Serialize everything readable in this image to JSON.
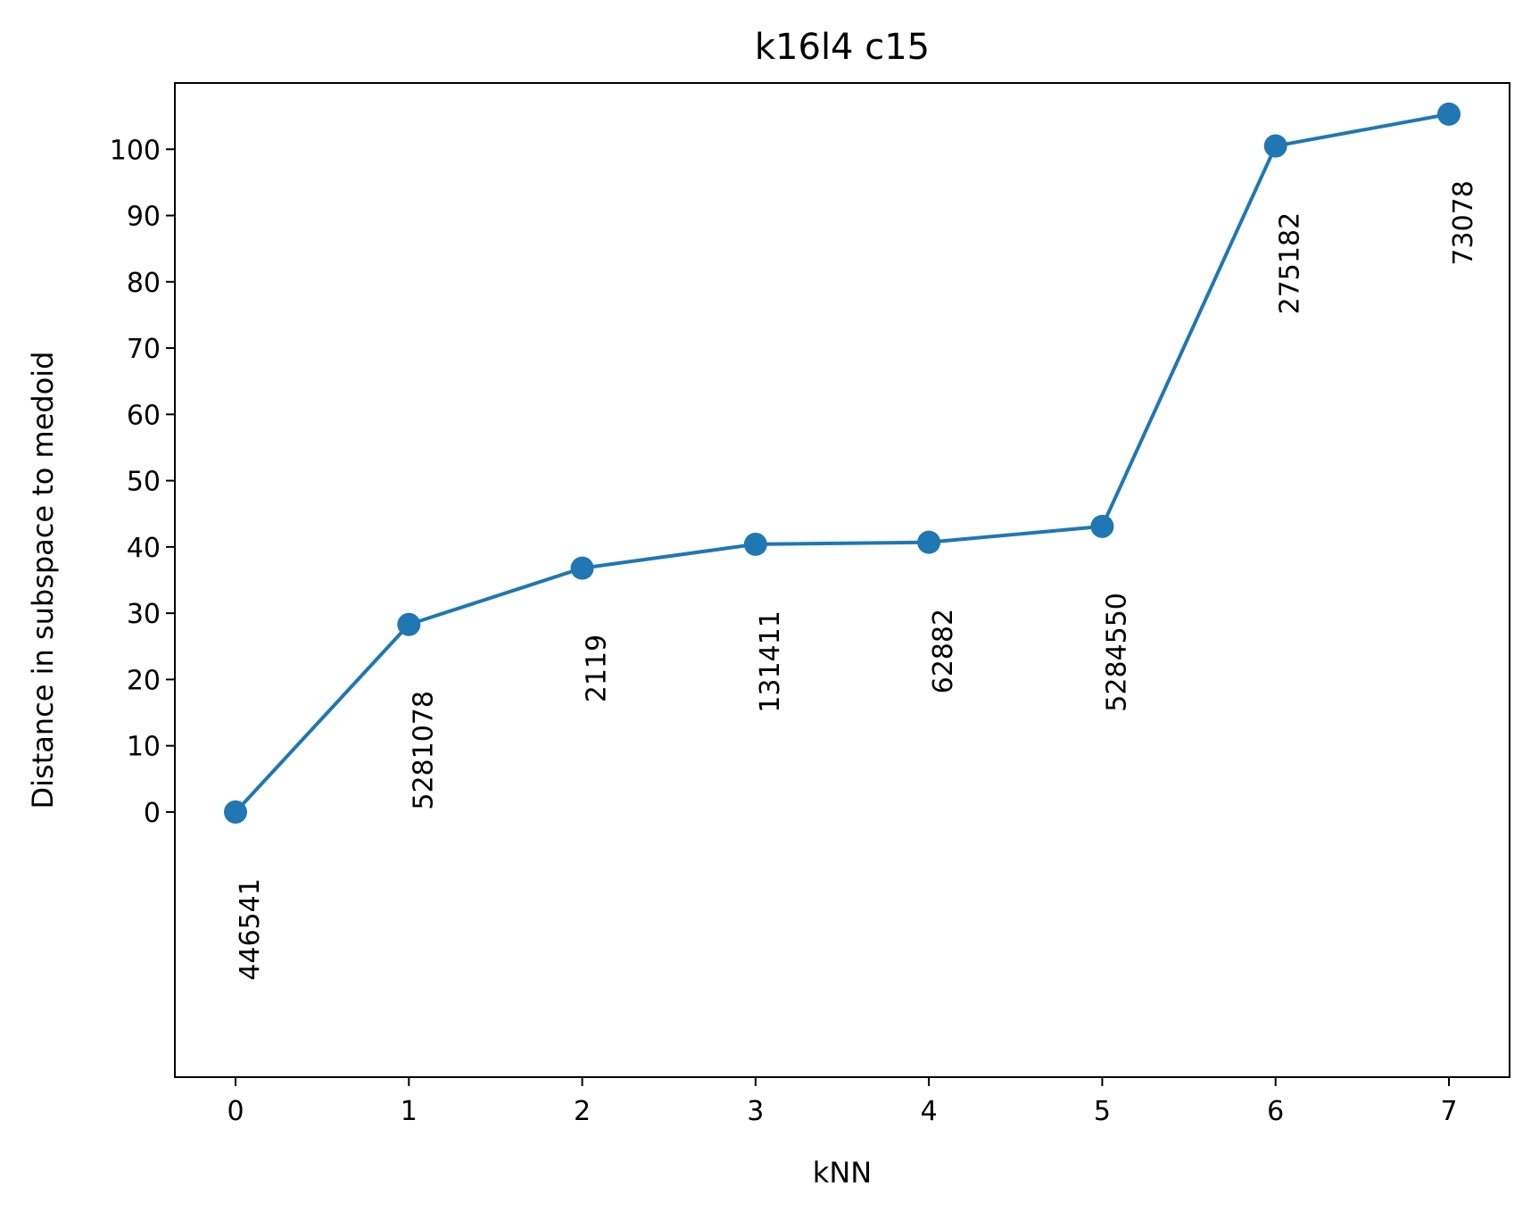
{
  "chart_data": {
    "type": "line",
    "title": "k16l4 c15",
    "xlabel": "kNN",
    "ylabel": "Distance in subspace to medoid",
    "x": [
      0,
      1,
      2,
      3,
      4,
      5,
      6,
      7
    ],
    "xlim": [
      -0.35,
      7.35
    ],
    "ylim": [
      -40,
      110
    ],
    "xticks": [
      0,
      1,
      2,
      3,
      4,
      5,
      6,
      7
    ],
    "yticks": [
      0,
      10,
      20,
      30,
      40,
      50,
      60,
      70,
      80,
      90,
      100
    ],
    "grid": false,
    "series": [
      {
        "color": "#1f77b4",
        "marker": "circle",
        "values": [
          0,
          28.3,
          36.8,
          40.4,
          40.7,
          43.1,
          100.5,
          105.3
        ],
        "point_labels": [
          "446541",
          "5281078",
          "2119",
          "131411",
          "62882",
          "5284550",
          "275182",
          "73078"
        ]
      }
    ]
  }
}
